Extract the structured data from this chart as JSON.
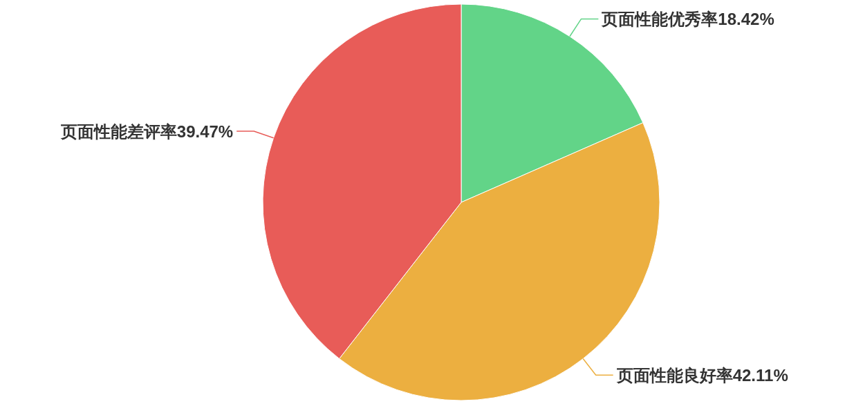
{
  "chart_data": {
    "type": "pie",
    "categories": [
      "页面性能优秀率",
      "页面性能良好率",
      "页面性能差评率"
    ],
    "values": [
      18.42,
      42.11,
      39.47
    ],
    "value_labels": [
      "18.42%",
      "42.11%",
      "39.47%"
    ],
    "colors": [
      "#62d488",
      "#ecaf40",
      "#e85c58"
    ]
  }
}
